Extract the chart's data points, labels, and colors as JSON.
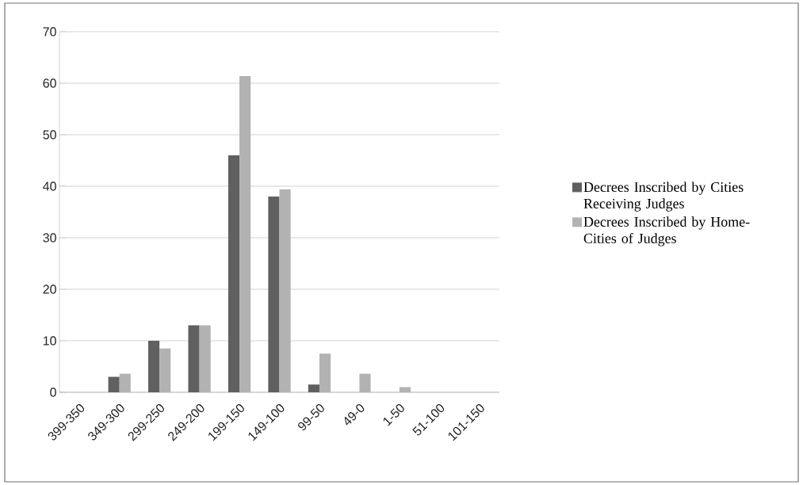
{
  "chart_data": {
    "type": "bar",
    "categories": [
      "399-350",
      "349-300",
      "299-250",
      "249-200",
      "199-150",
      "149-100",
      "99-50",
      "49-0",
      "1-50",
      "51-100",
      "101-150"
    ],
    "series": [
      {
        "name": "Decrees Inscribed by Cities Receiving Judges",
        "color": "#606060",
        "values": [
          0,
          3,
          10,
          13,
          46,
          38,
          1.5,
          0,
          0,
          0,
          0
        ]
      },
      {
        "name": "Decrees Inscribed by Home-Cities of Judges",
        "color": "#b2b2b2",
        "values": [
          0,
          3.6,
          8.5,
          13,
          61.4,
          39.4,
          7.5,
          3.6,
          1,
          0,
          0
        ]
      }
    ],
    "ylim": [
      0,
      70
    ],
    "yticks": [
      0,
      10,
      20,
      30,
      40,
      50,
      60,
      70
    ],
    "grid": "y",
    "legend": "right"
  }
}
